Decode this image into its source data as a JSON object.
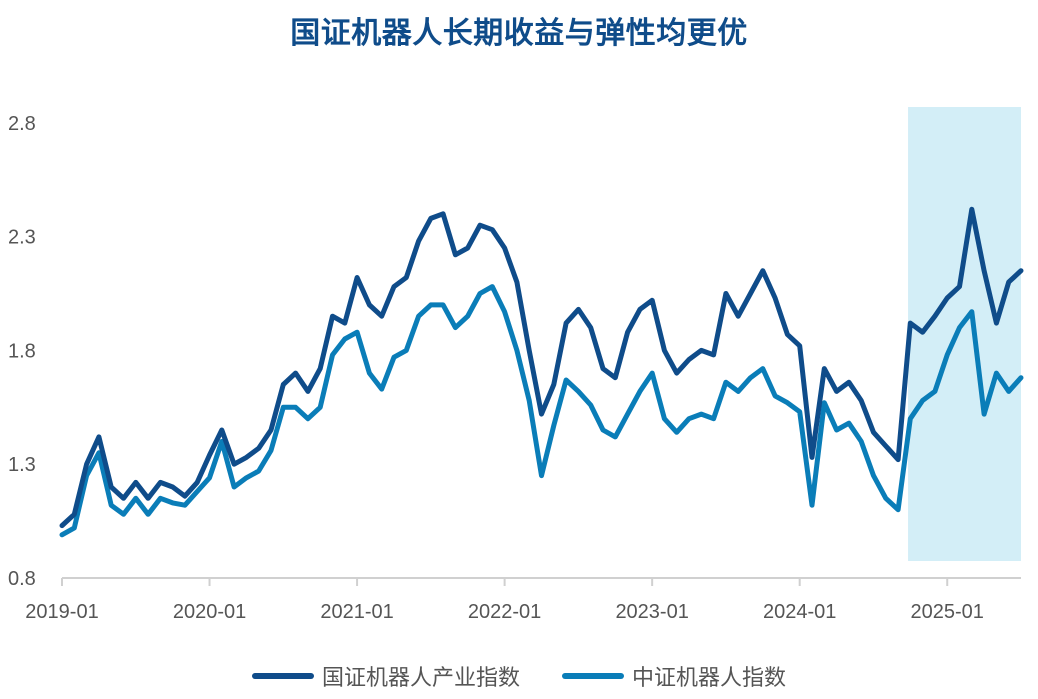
{
  "chart_data": {
    "type": "line",
    "title": "国证机器人长期收益与弹性均更优",
    "xlabel": "",
    "ylabel": "",
    "ylim": [
      0.8,
      2.9
    ],
    "yticks": [
      "0.8",
      "1.3",
      "1.8",
      "2.3",
      "2.8"
    ],
    "yticks_num": [
      0.8,
      1.3,
      1.8,
      2.3,
      2.8
    ],
    "xticks": [
      "2019-01",
      "2020-01",
      "2021-01",
      "2022-01",
      "2023-01",
      "2024-01",
      "2025-01"
    ],
    "x_range": [
      "2019-01",
      "2025-07"
    ],
    "highlight_range": [
      "2024-09",
      "2025-07"
    ],
    "highlight_color": "#D3EEF7",
    "legend_position": "bottom",
    "grid": false,
    "x": [
      "2019-01",
      "2019-02",
      "2019-03",
      "2019-04",
      "2019-05",
      "2019-06",
      "2019-07",
      "2019-08",
      "2019-09",
      "2019-10",
      "2019-11",
      "2019-12",
      "2020-01",
      "2020-02",
      "2020-03",
      "2020-04",
      "2020-05",
      "2020-06",
      "2020-07",
      "2020-08",
      "2020-09",
      "2020-10",
      "2020-11",
      "2020-12",
      "2021-01",
      "2021-02",
      "2021-03",
      "2021-04",
      "2021-05",
      "2021-06",
      "2021-07",
      "2021-08",
      "2021-09",
      "2021-10",
      "2021-11",
      "2021-12",
      "2022-01",
      "2022-02",
      "2022-03",
      "2022-04",
      "2022-05",
      "2022-06",
      "2022-07",
      "2022-08",
      "2022-09",
      "2022-10",
      "2022-11",
      "2022-12",
      "2023-01",
      "2023-02",
      "2023-03",
      "2023-04",
      "2023-05",
      "2023-06",
      "2023-07",
      "2023-08",
      "2023-09",
      "2023-10",
      "2023-11",
      "2023-12",
      "2024-01",
      "2024-02",
      "2024-03",
      "2024-04",
      "2024-05",
      "2024-06",
      "2024-07",
      "2024-08",
      "2024-09",
      "2024-10",
      "2024-11",
      "2024-12",
      "2025-01",
      "2025-02",
      "2025-03",
      "2025-04",
      "2025-05",
      "2025-06",
      "2025-07"
    ],
    "series": [
      {
        "name": "国证机器人产业指数",
        "color": "#0F4C8A",
        "values": [
          1.03,
          1.08,
          1.3,
          1.42,
          1.2,
          1.15,
          1.22,
          1.15,
          1.22,
          1.2,
          1.16,
          1.22,
          1.34,
          1.45,
          1.3,
          1.33,
          1.37,
          1.45,
          1.65,
          1.7,
          1.62,
          1.72,
          1.95,
          1.92,
          2.12,
          2.0,
          1.95,
          2.08,
          2.12,
          2.28,
          2.38,
          2.4,
          2.22,
          2.25,
          2.35,
          2.33,
          2.25,
          2.1,
          1.8,
          1.52,
          1.65,
          1.92,
          1.98,
          1.9,
          1.72,
          1.68,
          1.88,
          1.98,
          2.02,
          1.8,
          1.7,
          1.76,
          1.8,
          1.78,
          2.05,
          1.95,
          2.05,
          2.15,
          2.03,
          1.87,
          1.82,
          1.33,
          1.72,
          1.62,
          1.66,
          1.58,
          1.44,
          1.38,
          1.32,
          1.92,
          1.88,
          1.95,
          2.03,
          2.08,
          2.42,
          2.15,
          1.92,
          2.1,
          2.15
        ]
      },
      {
        "name": "中证机器人指数",
        "color": "#0A7DB8",
        "values": [
          0.99,
          1.02,
          1.25,
          1.35,
          1.12,
          1.08,
          1.15,
          1.08,
          1.15,
          1.13,
          1.12,
          1.18,
          1.24,
          1.4,
          1.2,
          1.24,
          1.27,
          1.36,
          1.55,
          1.55,
          1.5,
          1.55,
          1.78,
          1.85,
          1.88,
          1.7,
          1.63,
          1.77,
          1.8,
          1.95,
          2.0,
          2.0,
          1.9,
          1.95,
          2.05,
          2.08,
          1.97,
          1.8,
          1.58,
          1.25,
          1.47,
          1.67,
          1.62,
          1.56,
          1.45,
          1.42,
          1.52,
          1.62,
          1.7,
          1.5,
          1.44,
          1.5,
          1.52,
          1.5,
          1.66,
          1.62,
          1.68,
          1.72,
          1.6,
          1.57,
          1.53,
          1.12,
          1.57,
          1.45,
          1.48,
          1.4,
          1.25,
          1.15,
          1.1,
          1.5,
          1.58,
          1.62,
          1.78,
          1.9,
          1.97,
          1.52,
          1.7,
          1.62,
          1.68
        ]
      }
    ]
  }
}
